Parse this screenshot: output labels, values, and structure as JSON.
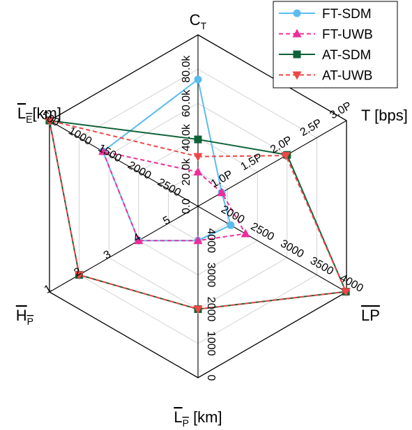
{
  "chart_data": {
    "type": "radar",
    "grid": true,
    "legend_position": "top-right",
    "axes": [
      {
        "id": "ct",
        "label": "C",
        "sub": "T",
        "suffix": "",
        "overline": false,
        "range": [
          0,
          100000
        ],
        "reversed": true,
        "ticks": [
          {
            "v": 0,
            "t": "0.0"
          },
          {
            "v": 20000,
            "t": "20.0k"
          },
          {
            "v": 40000,
            "t": "40.0k"
          },
          {
            "v": 60000,
            "t": "60.0k"
          },
          {
            "v": 80000,
            "t": "80.0k"
          }
        ]
      },
      {
        "id": "t",
        "label": "T [bps]",
        "sub": "",
        "suffix": "",
        "overline": false,
        "range": [
          0.5,
          3.0
        ],
        "reversed": false,
        "ticks": [
          {
            "v": 1.0,
            "t": "1.0P"
          },
          {
            "v": 1.5,
            "t": "1.5P"
          },
          {
            "v": 2.0,
            "t": "2.0P"
          },
          {
            "v": 2.5,
            "t": "2.5P"
          },
          {
            "v": 3.0,
            "t": "3.0P"
          }
        ]
      },
      {
        "id": "lp",
        "label": "LP",
        "sub": "",
        "suffix": "",
        "overline": true,
        "range": [
          1500,
          4000
        ],
        "reversed": false,
        "ticks": [
          {
            "v": 2000,
            "t": "2000"
          },
          {
            "v": 2500,
            "t": "2500"
          },
          {
            "v": 3000,
            "t": "3000"
          },
          {
            "v": 3500,
            "t": "3500"
          },
          {
            "v": 4000,
            "t": "4000"
          }
        ]
      },
      {
        "id": "lpkm",
        "label": "L",
        "sub": "P",
        "suffix": " [km]",
        "overline": true,
        "range": [
          5000,
          0
        ],
        "reversed": true,
        "ticks": [
          {
            "v": 4000,
            "t": "4000"
          },
          {
            "v": 3000,
            "t": "3000"
          },
          {
            "v": 2000,
            "t": "2000"
          },
          {
            "v": 1000,
            "t": "1000"
          },
          {
            "v": 0,
            "t": "0"
          }
        ]
      },
      {
        "id": "hp",
        "label": "H",
        "sub": "P",
        "suffix": "",
        "overline": true,
        "range": [
          6,
          1
        ],
        "reversed": true,
        "ticks": [
          {
            "v": 5,
            "t": "5"
          },
          {
            "v": 4,
            "t": "4"
          },
          {
            "v": 3,
            "t": "3"
          },
          {
            "v": 2,
            "t": "2"
          },
          {
            "v": 1,
            "t": "1"
          }
        ]
      },
      {
        "id": "le",
        "label": "L",
        "sub": "E",
        "suffix": "[km]",
        "overline": true,
        "range": [
          3000,
          500
        ],
        "reversed": true,
        "ticks": [
          {
            "v": 2500,
            "t": "2500"
          },
          {
            "v": 2000,
            "t": "2000"
          },
          {
            "v": 1500,
            "t": "1500"
          },
          {
            "v": 1000,
            "t": "1000"
          },
          {
            "v": 500,
            "t": "500"
          }
        ]
      }
    ],
    "series": [
      {
        "name": "FT-SDM",
        "color": "#5bbcf0",
        "dash": "",
        "marker": "circle",
        "values": [
          74000,
          0.9,
          2050,
          4000,
          4,
          1400
        ]
      },
      {
        "name": "FT-UWB",
        "color": "#ee2d9a",
        "dash": "6,4",
        "marker": "triangle-up",
        "values": [
          20000,
          0.9,
          2300,
          4000,
          4,
          1400
        ]
      },
      {
        "name": "AT-SDM",
        "color": "#0e6238",
        "dash": "",
        "marker": "square",
        "values": [
          39000,
          2.0,
          3990,
          2000,
          2,
          500
        ]
      },
      {
        "name": "AT-UWB",
        "color": "#ef4646",
        "dash": "6,4",
        "marker": "triangle-down",
        "values": [
          29000,
          1.98,
          3990,
          2000,
          2,
          500
        ]
      }
    ]
  }
}
